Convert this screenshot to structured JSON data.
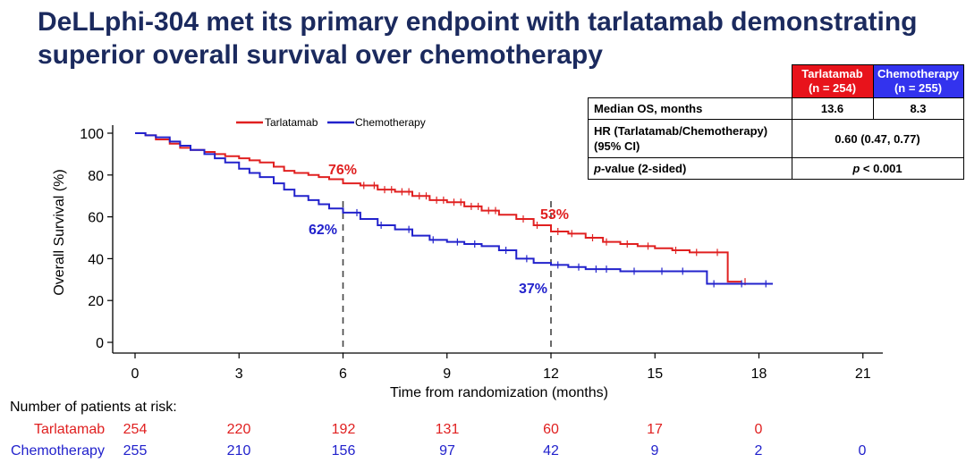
{
  "title": {
    "line1": "DeLLphi-304 met its primary endpoint with tarlatamab demonstrating",
    "line2": "superior overall survival over chemotherapy"
  },
  "colors": {
    "tarlatamab": "#e02020",
    "chemotherapy": "#2222cc",
    "title": "#1b2a5e",
    "tarlatamab_hdr": "#e8131b",
    "chemotherapy_hdr": "#3333ee"
  },
  "table": {
    "header_tarlatamab": [
      "Tarlatamab",
      "(n = 254)"
    ],
    "header_chemotherapy": [
      "Chemotherapy",
      "(n = 255)"
    ],
    "rows": [
      {
        "label": "Median OS, months",
        "tarlatamab": "13.6",
        "chemotherapy": "8.3"
      },
      {
        "label_line1": "HR (Tarlatamab/Chemotherapy)",
        "label_line2": "(95% CI)",
        "value": "0.60 (0.47, 0.77)"
      },
      {
        "label_p": "p",
        "label_rest": "-value (2-sided)",
        "value_p": "p",
        "value_rest": " < 0.001"
      }
    ]
  },
  "risk_table": {
    "title": "Number of patients at risk:",
    "tarlatamab_label": "Tarlatamab",
    "chemotherapy_label": "Chemotherapy",
    "tarlatamab": [
      "254",
      "220",
      "192",
      "131",
      "60",
      "17",
      "0"
    ],
    "chemotherapy": [
      "255",
      "210",
      "156",
      "97",
      "42",
      "9",
      "2",
      "0"
    ]
  },
  "chart_data": {
    "type": "line",
    "title": "",
    "xlabel": "Time from randomization (months)",
    "ylabel": "Overall Survival (%)",
    "xlim": [
      0,
      21
    ],
    "ylim": [
      0,
      100
    ],
    "xticks": [
      0,
      3,
      6,
      9,
      12,
      15,
      18,
      21
    ],
    "yticks": [
      0,
      20,
      40,
      60,
      80,
      100
    ],
    "legend": [
      "Tarlatamab",
      "Chemotherapy"
    ],
    "annotations": [
      {
        "text": "76%",
        "series": "Tarlatamab",
        "x": 6,
        "y": 76
      },
      {
        "text": "62%",
        "series": "Chemotherapy",
        "x": 6,
        "y": 62
      },
      {
        "text": "53%",
        "series": "Tarlatamab",
        "x": 12,
        "y": 53
      },
      {
        "text": "37%",
        "series": "Chemotherapy",
        "x": 12,
        "y": 37
      }
    ],
    "reference_lines_x": [
      6,
      12
    ],
    "series": [
      {
        "name": "Tarlatamab",
        "x": [
          0,
          0.3,
          0.6,
          1.0,
          1.3,
          1.6,
          2.0,
          2.3,
          2.6,
          3.0,
          3.3,
          3.6,
          4.0,
          4.3,
          4.6,
          5.0,
          5.3,
          5.6,
          6.0,
          6.5,
          7.0,
          7.5,
          8.0,
          8.5,
          9.0,
          9.5,
          10.0,
          10.5,
          11.0,
          11.5,
          12.0,
          12.5,
          13.0,
          13.5,
          14.0,
          14.5,
          15.0,
          15.5,
          16.0,
          16.5,
          17.0,
          17.1,
          17.5
        ],
        "y": [
          100,
          99,
          97,
          95,
          93,
          92,
          91,
          90,
          89,
          88,
          87,
          86,
          84,
          82,
          81,
          80,
          79,
          78,
          76,
          75,
          73,
          72,
          70,
          68,
          67,
          65,
          63,
          61,
          59,
          56,
          53,
          52,
          50,
          48,
          47,
          46,
          45,
          44,
          43,
          43,
          43,
          29,
          29
        ],
        "censor_x": [
          6.6,
          6.9,
          7.2,
          7.4,
          7.7,
          7.9,
          8.2,
          8.4,
          8.7,
          8.9,
          9.2,
          9.4,
          9.7,
          9.9,
          10.2,
          10.4,
          11.2,
          11.6,
          12.2,
          12.6,
          13.2,
          13.6,
          14.2,
          14.8,
          15.6,
          16.2,
          16.8,
          17.6
        ]
      },
      {
        "name": "Chemotherapy",
        "x": [
          0,
          0.3,
          0.6,
          1.0,
          1.3,
          1.6,
          2.0,
          2.3,
          2.6,
          3.0,
          3.3,
          3.6,
          4.0,
          4.3,
          4.6,
          5.0,
          5.3,
          5.6,
          6.0,
          6.5,
          7.0,
          7.5,
          8.0,
          8.5,
          9.0,
          9.5,
          10.0,
          10.5,
          11.0,
          11.5,
          12.0,
          12.5,
          13.0,
          14.0,
          15.0,
          15.5,
          16.0,
          16.5,
          17.0,
          18.0,
          18.4
        ],
        "y": [
          100,
          99,
          98,
          96,
          94,
          92,
          90,
          88,
          86,
          83,
          81,
          79,
          76,
          73,
          70,
          68,
          66,
          64,
          62,
          59,
          56,
          54,
          51,
          49,
          48,
          47,
          46,
          44,
          40,
          38,
          37,
          36,
          35,
          34,
          34,
          34,
          34,
          28,
          28,
          28,
          28
        ],
        "censor_x": [
          6.4,
          7.1,
          7.9,
          8.6,
          9.3,
          9.8,
          10.7,
          11.3,
          12.2,
          12.8,
          13.3,
          13.6,
          14.4,
          15.2,
          15.8,
          16.7,
          17.5,
          18.2
        ]
      }
    ]
  }
}
